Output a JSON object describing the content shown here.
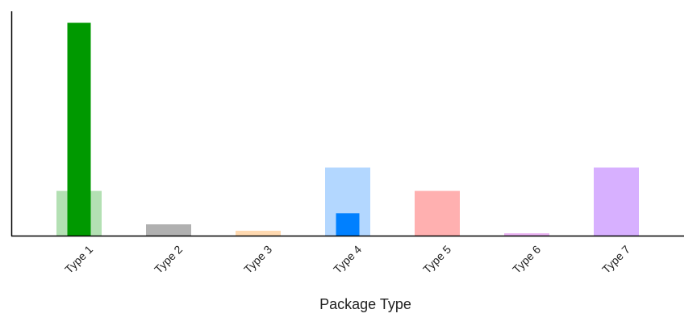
{
  "chart_data": {
    "type": "bar",
    "x_label": "Package Type",
    "categories": [
      "Type 1",
      "Type 2",
      "Type 3",
      "Type 4",
      "Type 5",
      "Type 6",
      "Type 7"
    ],
    "series": [
      {
        "colors": [
          "#b3e0b3",
          "#b0b0b0",
          "#ffd9b0",
          "#b3d7ff",
          "#ffb0b0",
          "#eab3f2",
          "#d7b0ff"
        ],
        "values": [
          21,
          5.3,
          2.3,
          32,
          21,
          1.1,
          32
        ]
      },
      {
        "colors": [
          "#009900",
          null,
          null,
          "#0080ff",
          null,
          null,
          null
        ],
        "values": [
          100,
          null,
          null,
          10.5,
          null,
          null,
          null
        ]
      }
    ],
    "ylim": [
      0,
      105
    ]
  }
}
